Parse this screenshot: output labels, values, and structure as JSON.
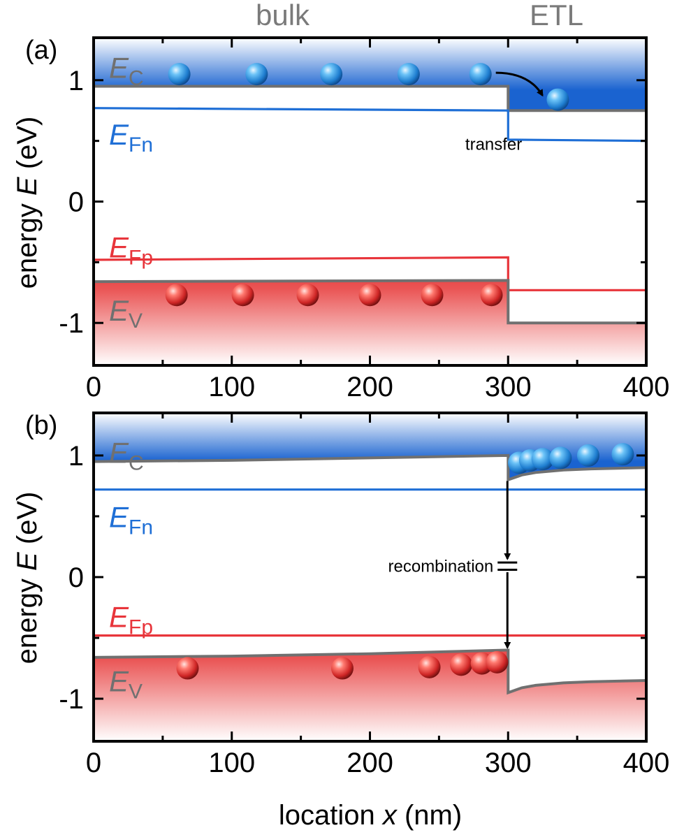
{
  "top_labels": {
    "left": "bulk",
    "right": "ETL"
  },
  "x_axis_label": {
    "prefix": "location ",
    "var": "x",
    "suffix": " (nm)"
  },
  "y_axis_label": {
    "prefix": "energy ",
    "var": "E",
    "suffix": " (eV)"
  },
  "colors": {
    "conduction": "#1f6fd6",
    "valence": "#e8353b",
    "band_edge": "#707070",
    "electron": "#2f86e0",
    "hole": "#e0403b",
    "header_text": "#7a7a7a"
  },
  "chart_data": [
    {
      "type": "line",
      "panel_label": "(a)",
      "xlim": [
        0,
        400
      ],
      "ylim": [
        -1.35,
        1.35
      ],
      "xticks": [
        0,
        100,
        200,
        300,
        400
      ],
      "xtick_labels": [
        "0",
        "100",
        "200",
        "300",
        "400"
      ],
      "yticks": [
        1,
        0,
        -1
      ],
      "ytick_labels": [
        "1",
        "0",
        "-1"
      ],
      "band_labels": {
        "EC": {
          "main": "E",
          "sub": "C"
        },
        "EFn": {
          "main": "E",
          "sub": "Fn"
        },
        "EFp": {
          "main": "E",
          "sub": "Fp"
        },
        "EV": {
          "main": "E",
          "sub": "V"
        }
      },
      "series": [
        {
          "key": "EC",
          "x": [
            0,
            300,
            300,
            400
          ],
          "y": [
            0.95,
            0.95,
            0.75,
            0.75
          ]
        },
        {
          "key": "EFn",
          "x": [
            0,
            300,
            300,
            400
          ],
          "y": [
            0.77,
            0.75,
            0.51,
            0.5
          ]
        },
        {
          "key": "EFp",
          "x": [
            0,
            300,
            300,
            400
          ],
          "y": [
            -0.48,
            -0.46,
            -0.73,
            -0.73
          ]
        },
        {
          "key": "EV",
          "x": [
            0,
            300,
            300,
            400
          ],
          "y": [
            -0.66,
            -0.65,
            -1.0,
            -1.0
          ]
        }
      ],
      "electrons": [
        [
          62,
          1.05
        ],
        [
          118,
          1.05
        ],
        [
          172,
          1.05
        ],
        [
          228,
          1.05
        ],
        [
          280,
          1.05
        ],
        [
          336,
          0.84
        ]
      ],
      "holes": [
        [
          60,
          -0.77
        ],
        [
          108,
          -0.77
        ],
        [
          155,
          -0.77
        ],
        [
          200,
          -0.77
        ],
        [
          245,
          -0.77
        ],
        [
          288,
          -0.77
        ]
      ],
      "annotation": {
        "text": "transfer"
      }
    },
    {
      "type": "line",
      "panel_label": "(b)",
      "xlim": [
        0,
        400
      ],
      "ylim": [
        -1.35,
        1.35
      ],
      "xticks": [
        0,
        100,
        200,
        300,
        400
      ],
      "xtick_labels": [
        "0",
        "100",
        "200",
        "300",
        "400"
      ],
      "yticks": [
        1,
        0,
        -1
      ],
      "ytick_labels": [
        "1",
        "0",
        "-1"
      ],
      "band_labels": {
        "EC": {
          "main": "E",
          "sub": "C"
        },
        "EFn": {
          "main": "E",
          "sub": "Fn"
        },
        "EFp": {
          "main": "E",
          "sub": "Fp"
        },
        "EV": {
          "main": "E",
          "sub": "V"
        }
      },
      "series": [
        {
          "key": "EC",
          "x": [
            0,
            100,
            200,
            300,
            300,
            310,
            320,
            340,
            360,
            400
          ],
          "y": [
            0.95,
            0.96,
            0.98,
            1.0,
            0.8,
            0.84,
            0.86,
            0.88,
            0.89,
            0.9
          ]
        },
        {
          "key": "EFn",
          "x": [
            0,
            400
          ],
          "y": [
            0.72,
            0.72
          ]
        },
        {
          "key": "EFp",
          "x": [
            0,
            400
          ],
          "y": [
            -0.48,
            -0.48
          ]
        },
        {
          "key": "EV",
          "x": [
            0,
            100,
            200,
            300,
            300,
            310,
            320,
            340,
            360,
            400
          ],
          "y": [
            -0.66,
            -0.65,
            -0.63,
            -0.6,
            -0.95,
            -0.91,
            -0.89,
            -0.87,
            -0.86,
            -0.85
          ]
        }
      ],
      "electrons": [
        [
          308,
          0.94
        ],
        [
          316,
          0.96
        ],
        [
          325,
          0.97
        ],
        [
          338,
          0.98
        ],
        [
          358,
          1.0
        ],
        [
          383,
          1.01
        ]
      ],
      "holes": [
        [
          68,
          -0.75
        ],
        [
          180,
          -0.75
        ],
        [
          243,
          -0.74
        ],
        [
          266,
          -0.72
        ],
        [
          281,
          -0.71
        ],
        [
          292,
          -0.7
        ]
      ],
      "annotation": {
        "text": "recombination"
      }
    }
  ]
}
